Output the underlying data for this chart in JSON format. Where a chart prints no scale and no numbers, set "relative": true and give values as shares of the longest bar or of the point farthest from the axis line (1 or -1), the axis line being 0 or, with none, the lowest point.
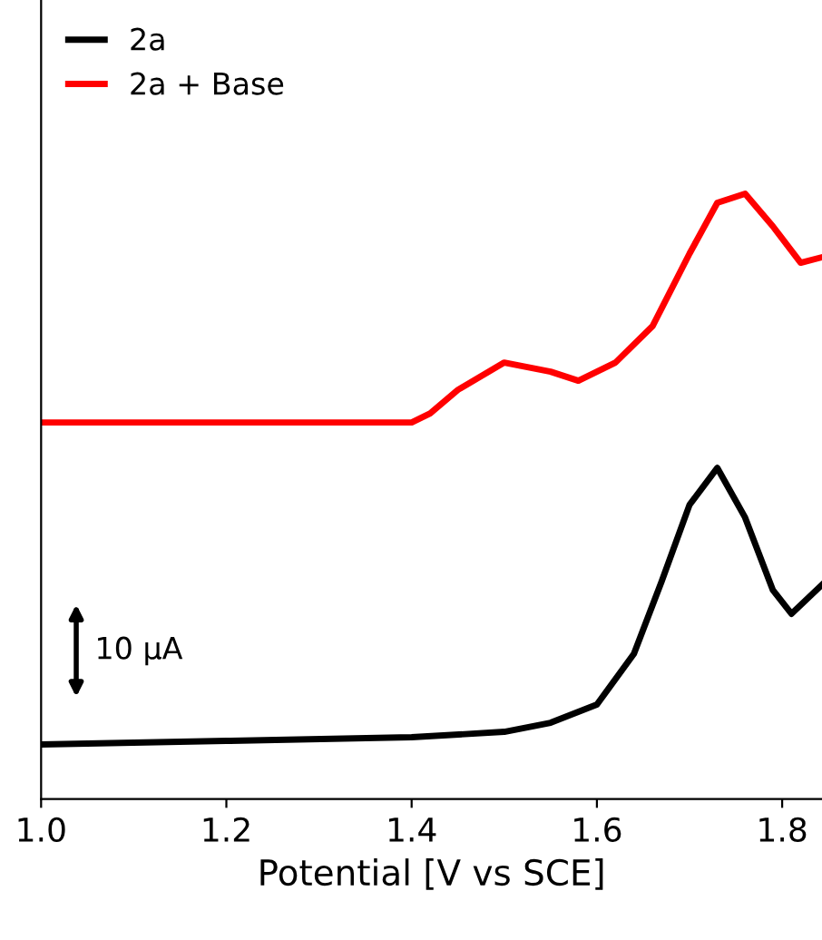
{
  "chart_data": {
    "type": "line",
    "relative": true,
    "xlabel": "Potential [V vs SCE]",
    "xlim": [
      1.0,
      1.843
    ],
    "xticks": [
      {
        "value": 1.0,
        "label": "1.0"
      },
      1.2,
      1.4,
      1.6,
      1.8
    ],
    "legend": "top left",
    "grid": false,
    "marker": "none",
    "line_style": "solid",
    "tick_labels": "x",
    "annotations": [
      "10 µA"
    ],
    "series": [
      {
        "name": "2a",
        "color": "#000000",
        "x": [
          1.0,
          1.2,
          1.4,
          1.5,
          1.55,
          1.6,
          1.64,
          1.67,
          1.7,
          1.73,
          1.76,
          1.79,
          1.81,
          1.843
        ],
        "values": [
          0.09,
          0.096,
          0.102,
          0.111,
          0.126,
          0.156,
          0.24,
          0.36,
          0.486,
          0.547,
          0.465,
          0.345,
          0.306,
          0.354
        ]
      },
      {
        "name": "2a + Base",
        "color": "#ff0000",
        "x": [
          1.0,
          1.2,
          1.4,
          1.42,
          1.45,
          1.5,
          1.55,
          1.58,
          1.62,
          1.66,
          1.7,
          1.73,
          1.76,
          1.79,
          1.82,
          1.843
        ],
        "values": [
          0.622,
          0.622,
          0.622,
          0.637,
          0.676,
          0.721,
          0.706,
          0.691,
          0.721,
          0.781,
          0.901,
          0.985,
          1,
          0.946,
          0.886,
          0.895
        ]
      }
    ]
  }
}
